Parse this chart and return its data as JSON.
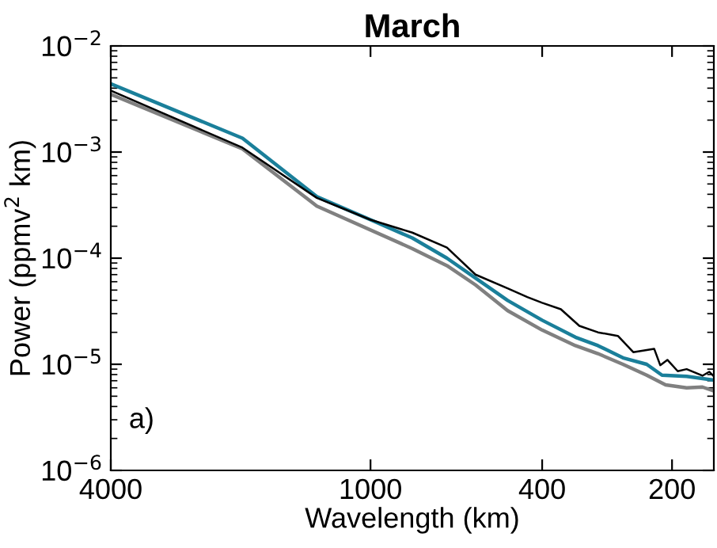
{
  "chart_data": {
    "type": "line",
    "title": "March",
    "xlabel": "Wavelength (km)",
    "ylabel": "Power (ppmv$^{2}$ km)",
    "log": "xy",
    "xlim": [
      4000,
      160
    ],
    "xticks": [
      4000,
      1000,
      400,
      200
    ],
    "ylim": [
      1e-06,
      0.01
    ],
    "yticks": [
      {
        "value": 1e-06,
        "label": "10$^{−6}$"
      },
      {
        "value": 1e-05,
        "label": "10$^{−5}$"
      },
      {
        "value": 0.0001,
        "label": "10$^{−4}$"
      },
      {
        "value": 0.001,
        "label": "10$^{−3}$"
      },
      {
        "value": 0.01,
        "label": "10$^{−2}$"
      }
    ],
    "grid": false,
    "legend": false,
    "marker": "none",
    "line_style": "solid",
    "annotations": [
      "a)"
    ],
    "series": [
      {
        "color": "#808080",
        "x": [
          4000,
          1981,
          1332,
          800,
          665,
          571,
          481,
          400,
          335,
          297,
          260,
          229,
          207,
          185,
          170,
          160
        ],
        "values": [
          0.0035,
          0.00107,
          0.00031,
          0.000123,
          8.5e-05,
          5.6e-05,
          3.2e-05,
          2.1e-05,
          1.5e-05,
          1.26e-05,
          1e-05,
          7.9e-06,
          6.4e-06,
          6e-06,
          6.1e-06,
          5.6e-06
        ]
      },
      {
        "color": "#000000",
        "x": [
          4000,
          1981,
          1332,
          1000,
          800,
          665,
          571,
          481,
          433,
          400,
          362,
          328,
          297,
          267,
          246,
          220,
          213,
          205,
          194,
          185,
          170,
          164,
          160
        ],
        "values": [
          0.0038,
          0.0011,
          0.00037,
          0.00023,
          0.000174,
          0.000126,
          7e-05,
          5.2e-05,
          4.3e-05,
          3.8e-05,
          3.3e-05,
          2.3e-05,
          2e-05,
          1.85e-05,
          1.3e-05,
          1.4e-05,
          9.8e-06,
          1.1e-05,
          8.6e-06,
          9e-06,
          7.8e-06,
          8.5e-06,
          7.7e-06
        ]
      },
      {
        "color": "#1a7f9a",
        "x": [
          4000,
          1981,
          1332,
          1000,
          800,
          665,
          571,
          481,
          400,
          335,
          297,
          260,
          229,
          211,
          185,
          160
        ],
        "values": [
          0.0044,
          0.00135,
          0.00038,
          0.00023,
          0.000155,
          0.0001,
          6.5e-05,
          4e-05,
          2.6e-05,
          1.8e-05,
          1.5e-05,
          1.15e-05,
          1e-05,
          7.9e-06,
          7.7e-06,
          7.1e-06
        ]
      }
    ]
  }
}
